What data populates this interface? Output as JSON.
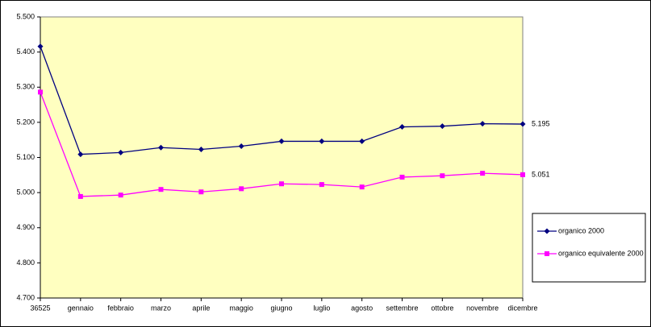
{
  "chart_data": {
    "type": "line",
    "categories": [
      "36525",
      "gennaio",
      "febbraio",
      "marzo",
      "aprile",
      "maggio",
      "giugno",
      "luglio",
      "agosto",
      "settembre",
      "ottobre",
      "novembre",
      "dicembre"
    ],
    "series": [
      {
        "name": "organico 2000",
        "color": "#000080",
        "marker": "diamond",
        "values": [
          5416,
          5109,
          5114,
          5128,
          5123,
          5132,
          5146,
          5146,
          5146,
          5187,
          5189,
          5196,
          5195
        ],
        "value_labels": [
          null,
          null,
          null,
          null,
          null,
          null,
          null,
          null,
          null,
          null,
          null,
          null,
          "5.195"
        ]
      },
      {
        "name": "organico equivalente 2000",
        "color": "#ff00ff",
        "marker": "square",
        "values": [
          5286,
          4989,
          4993,
          5009,
          5002,
          5011,
          5025,
          5023,
          5016,
          5044,
          5048,
          5055,
          5051
        ],
        "value_labels": [
          null,
          null,
          null,
          null,
          null,
          null,
          null,
          null,
          null,
          null,
          null,
          null,
          "5.051"
        ]
      }
    ],
    "ylim": [
      4700,
      5500
    ],
    "yticks": [
      {
        "value": 4700,
        "label": "4.700"
      },
      {
        "value": 4800,
        "label": "4.800"
      },
      {
        "value": 4900,
        "label": "4.900"
      },
      {
        "value": 5000,
        "label": "5.000"
      },
      {
        "value": 5100,
        "label": "5.100"
      },
      {
        "value": 5200,
        "label": "5.200"
      },
      {
        "value": 5300,
        "label": "5.300"
      },
      {
        "value": 5400,
        "label": "5.400"
      },
      {
        "value": 5500,
        "label": "5.500"
      }
    ],
    "grid": false,
    "legend": "right",
    "plot_background": "#ffffc0"
  }
}
